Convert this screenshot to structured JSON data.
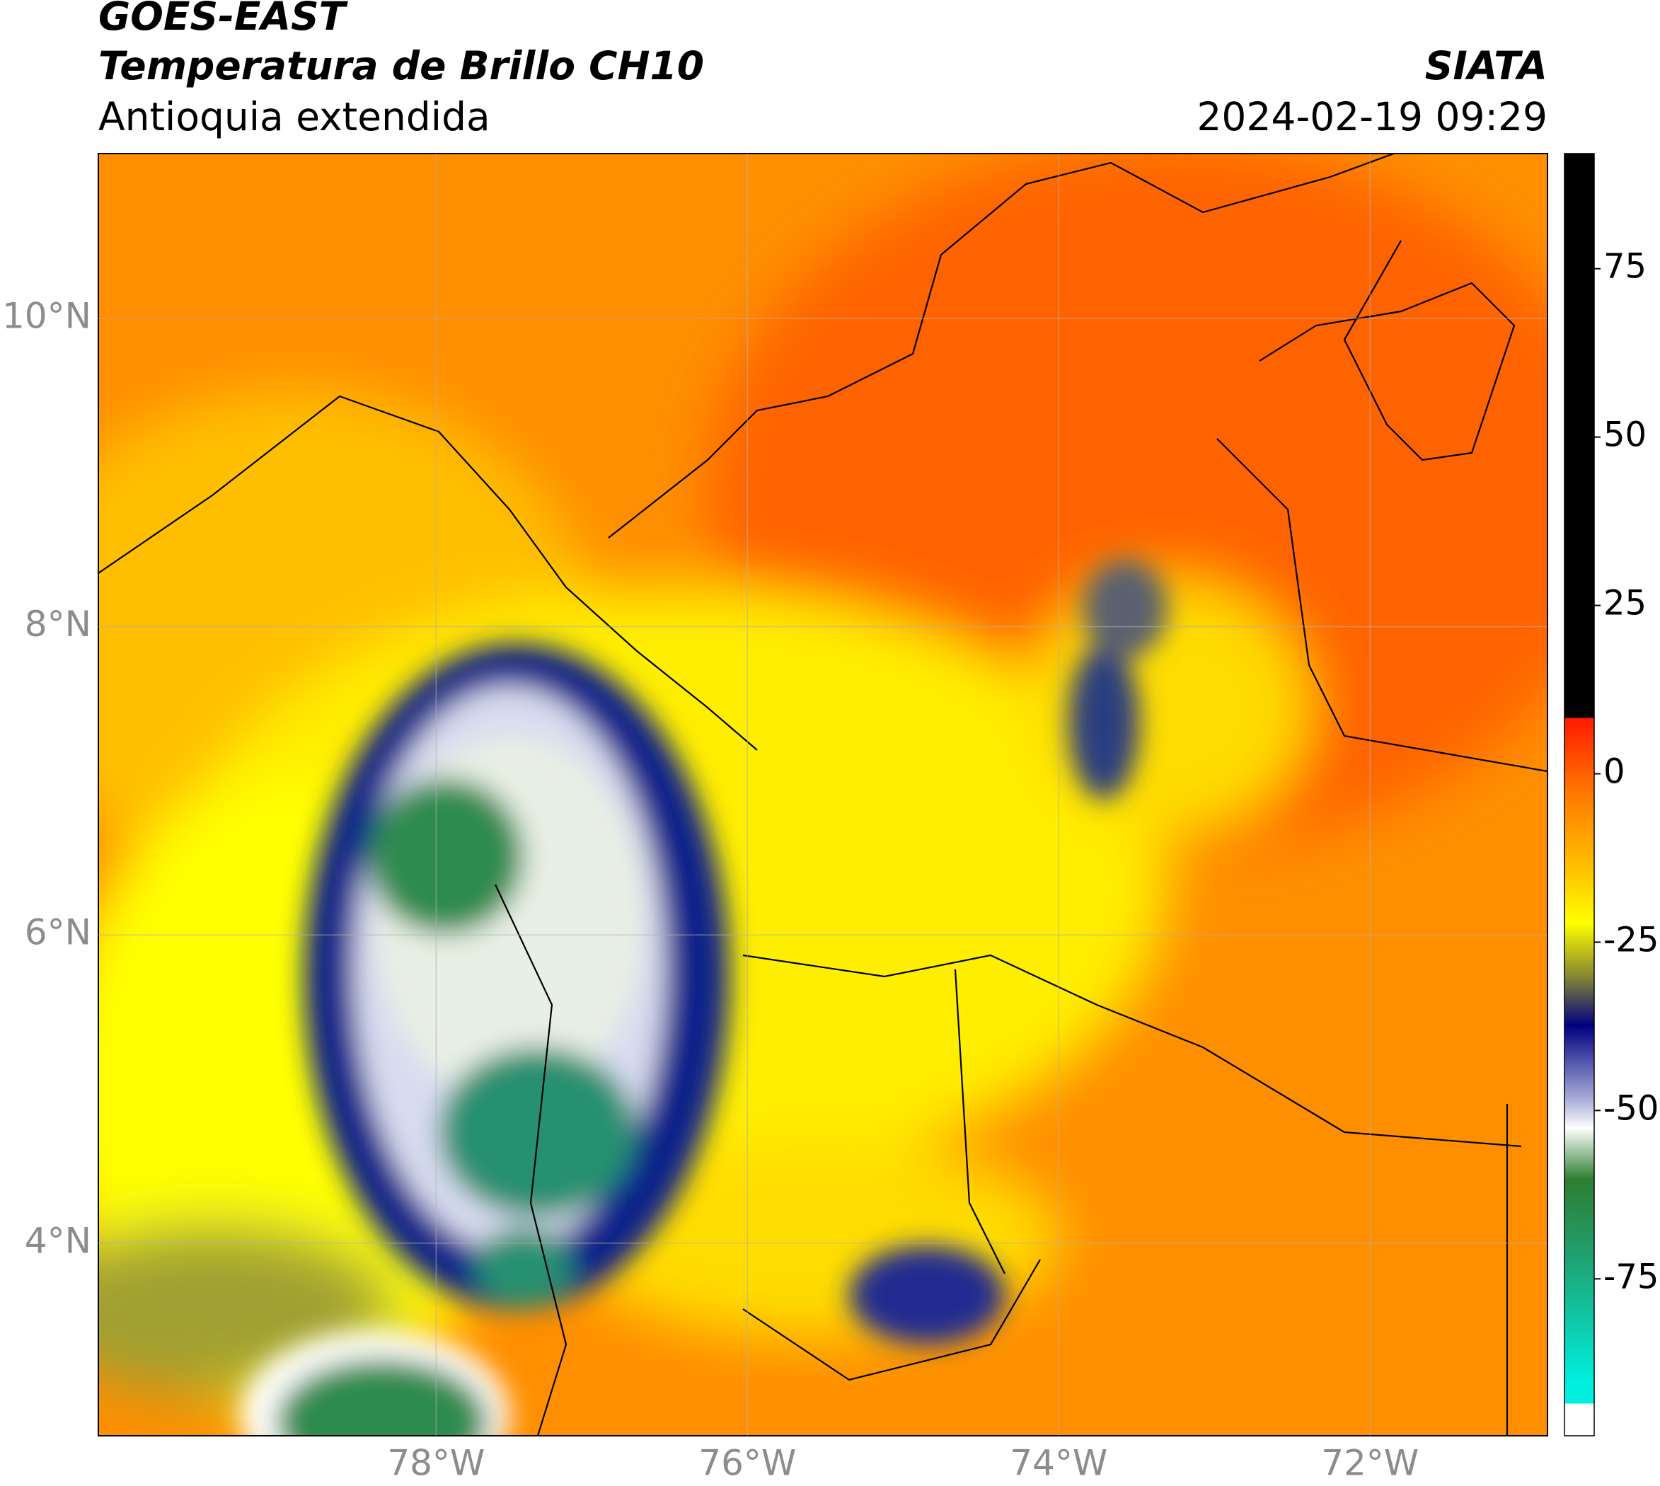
{
  "header": {
    "line1": "GOES-EAST",
    "line2": "Temperatura de Brillo CH10",
    "line3": "Antioquia extendida",
    "source": "SIATA",
    "datetime": "2024-02-19 09:29"
  },
  "map": {
    "xlim": [
      -80.17,
      -70.86
    ],
    "ylim": [
      2.75,
      11.07
    ],
    "xticks": [
      {
        "value": -78,
        "label": "78°W"
      },
      {
        "value": -76,
        "label": "76°W"
      },
      {
        "value": -74,
        "label": "74°W"
      },
      {
        "value": -72,
        "label": "72°W"
      }
    ],
    "yticks": [
      {
        "value": 4,
        "label": "4°N"
      },
      {
        "value": 6,
        "label": "6°N"
      },
      {
        "value": 8,
        "label": "8°N"
      },
      {
        "value": 10,
        "label": "10°N"
      }
    ]
  },
  "colorbar": {
    "lim": [
      -98.3,
      92.1
    ],
    "ticks": [
      75,
      50,
      25,
      0,
      -25,
      -50,
      -75
    ]
  }
}
